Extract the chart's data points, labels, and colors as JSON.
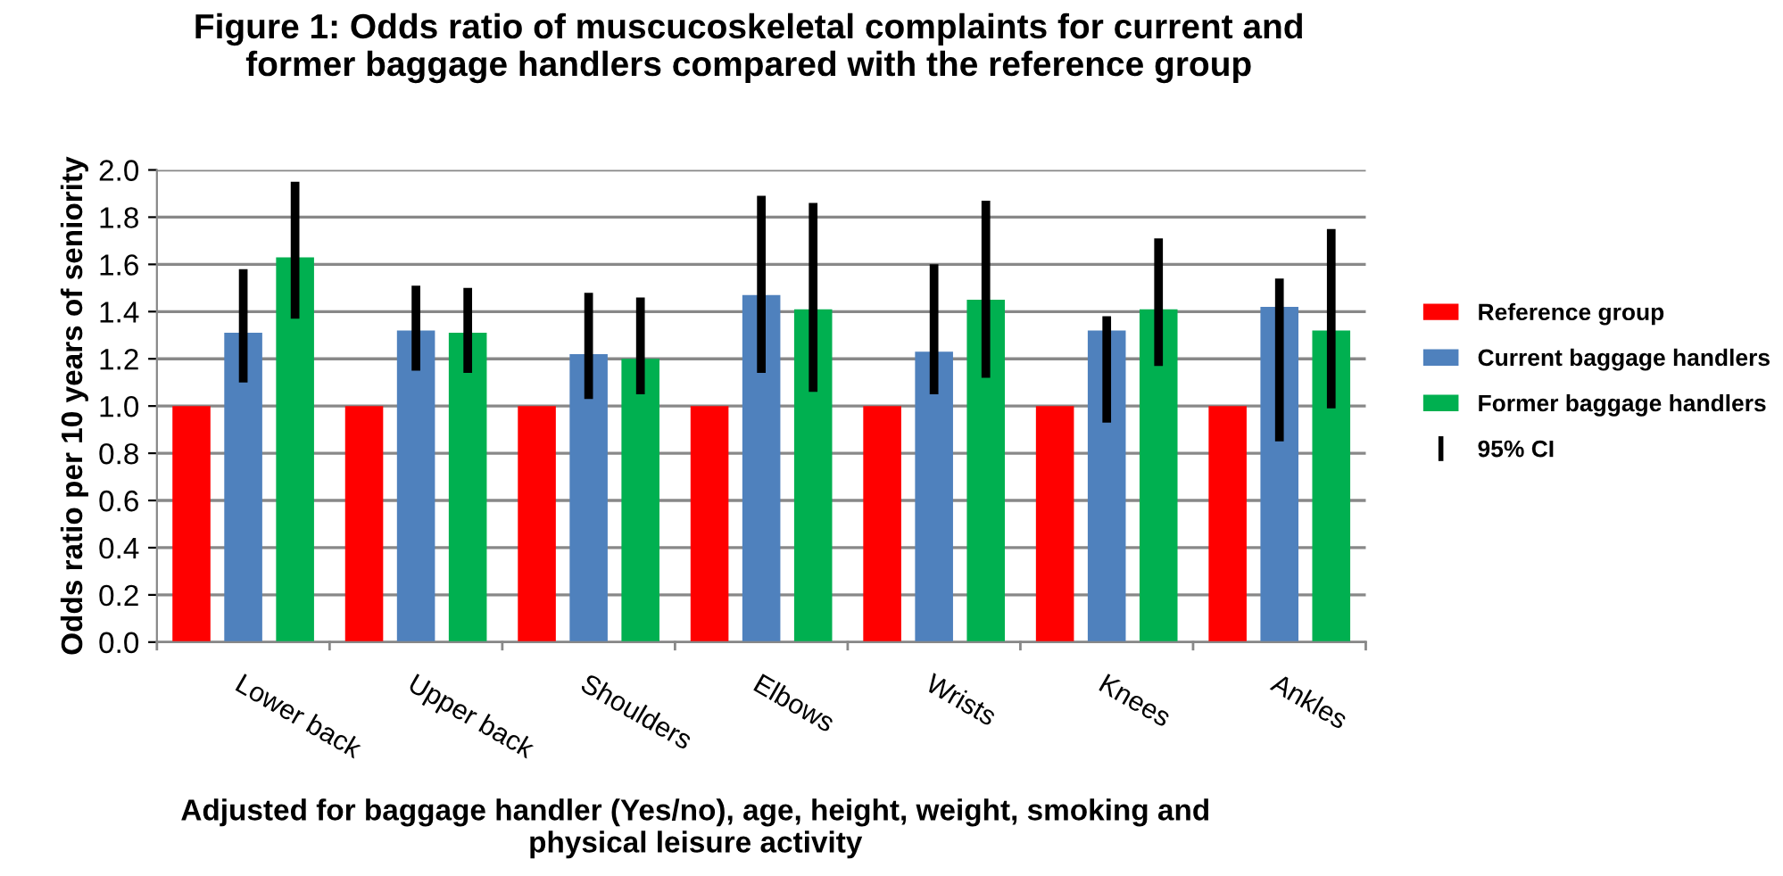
{
  "chart_data": {
    "type": "bar",
    "title": "Figure 1: Odds ratio of muscucoskeletal complaints for current and\nformer baggage handlers compared with the reference group",
    "xlabel": "Adjusted for baggage handler (Yes/no), age, height, weight, smoking and\nphysical leisure activity",
    "ylabel": "Odds ratio per 10 years of seniority",
    "categories": [
      "Lower back",
      "Upper back",
      "Shoulders",
      "Elbows",
      "Wrists",
      "Knees",
      "Ankles"
    ],
    "series": [
      {
        "name": "Reference group",
        "color": "#ff0000",
        "values": [
          1.0,
          1.0,
          1.0,
          1.0,
          1.0,
          1.0,
          1.0
        ]
      },
      {
        "name": "Current baggage handlers",
        "color": "#4f81bd",
        "values": [
          1.31,
          1.32,
          1.22,
          1.47,
          1.23,
          1.32,
          1.42
        ],
        "errors": [
          [
            1.1,
            1.58
          ],
          [
            1.15,
            1.51
          ],
          [
            1.03,
            1.48
          ],
          [
            1.14,
            1.89
          ],
          [
            1.05,
            1.6
          ],
          [
            0.93,
            1.38
          ],
          [
            0.85,
            1.54
          ]
        ]
      },
      {
        "name": "Former baggage handlers",
        "color": "#00b050",
        "values": [
          1.63,
          1.31,
          1.2,
          1.41,
          1.45,
          1.41,
          1.32
        ],
        "errors": [
          [
            1.37,
            1.95
          ],
          [
            1.14,
            1.5
          ],
          [
            1.05,
            1.46
          ],
          [
            1.06,
            1.86
          ],
          [
            1.12,
            1.87
          ],
          [
            1.17,
            1.71
          ],
          [
            0.99,
            1.75
          ]
        ]
      }
    ],
    "annotations": [
      "95% CI"
    ],
    "ylim": [
      0,
      2.0
    ],
    "yticks": [
      {
        "value": 0,
        "label": "0.0"
      },
      {
        "value": 0.2,
        "label": "0.2"
      },
      {
        "value": 0.4,
        "label": "0.4"
      },
      {
        "value": 0.6,
        "label": "0.6"
      },
      {
        "value": 0.8,
        "label": "0.8"
      },
      {
        "value": 1.0,
        "label": "1.0"
      },
      {
        "value": 1.2,
        "label": "1.2"
      },
      {
        "value": 1.4,
        "label": "1.4"
      },
      {
        "value": 1.6,
        "label": "1.6"
      },
      {
        "value": 1.8,
        "label": "1.8"
      },
      {
        "value": 2.0,
        "label": "2.0"
      }
    ],
    "grid": "y",
    "legend": "right"
  }
}
